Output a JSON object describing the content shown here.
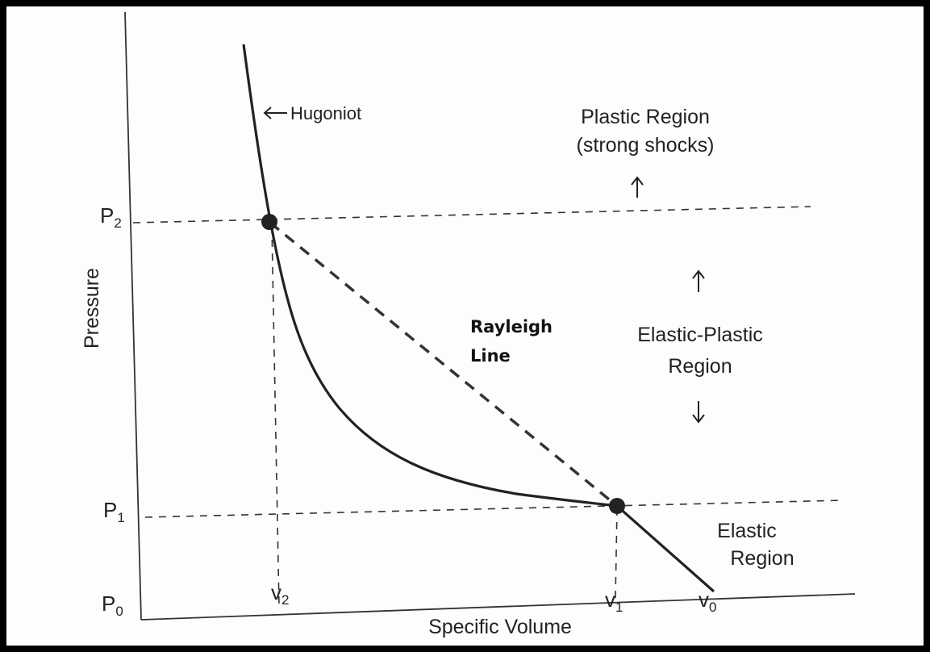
{
  "axes": {
    "y_label": "Pressure",
    "x_label": "Specific Volume"
  },
  "pressure_levels": [
    {
      "symbol": "P",
      "subscript": "0"
    },
    {
      "symbol": "P",
      "subscript": "1"
    },
    {
      "symbol": "P",
      "subscript": "2"
    }
  ],
  "volume_levels": [
    {
      "symbol": "v",
      "subscript": "2"
    },
    {
      "symbol": "v",
      "subscript": "1"
    },
    {
      "symbol": "v",
      "subscript": "0"
    }
  ],
  "labels": {
    "hugoniot": "Hugoniot",
    "rayleigh_line": [
      "Rayleigh",
      "Line"
    ],
    "plastic_region": [
      "Plastic Region",
      "(strong shocks)"
    ],
    "elastic_plastic_region": [
      "Elastic-Plastic",
      "Region"
    ],
    "elastic_region": [
      "Elastic",
      "Region"
    ]
  }
}
